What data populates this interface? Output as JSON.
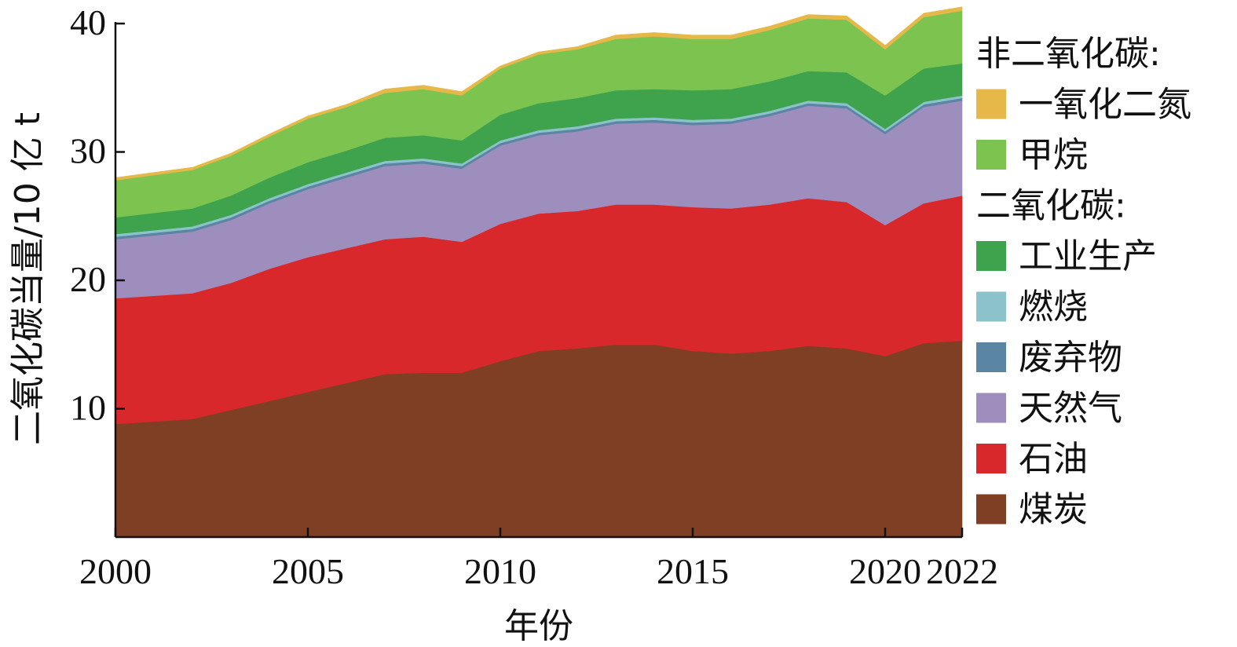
{
  "chart_data": {
    "type": "area",
    "stacked": true,
    "xlabel": "年份",
    "ylabel": "二氧化碳当量/10 亿 t",
    "xlim": [
      2000,
      2022
    ],
    "ylim": [
      0,
      40
    ],
    "xticks": [
      "2000",
      "2005",
      "2010",
      "2015",
      "2020",
      "2022"
    ],
    "yticks": [
      "10",
      "20",
      "30",
      "40"
    ],
    "x": [
      2000,
      2002,
      2003,
      2004,
      2005,
      2006,
      2007,
      2008,
      2009,
      2010,
      2011,
      2012,
      2013,
      2014,
      2015,
      2016,
      2017,
      2018,
      2019,
      2020,
      2021,
      2022
    ],
    "legend_groups": [
      {
        "heading": "非二氧化碳:",
        "items": [
          "一氧化二氮",
          "甲烷"
        ]
      },
      {
        "heading": "二氧化碳:",
        "items": [
          "工业生产",
          "燃烧",
          "废弃物",
          "天然气",
          "石油",
          "煤炭"
        ]
      }
    ],
    "series": [
      {
        "name": "煤炭",
        "color": "#7f3f25",
        "values": [
          8.8,
          9.2,
          9.9,
          10.6,
          11.3,
          12.0,
          12.7,
          12.8,
          12.8,
          13.7,
          14.5,
          14.7,
          15.0,
          15.0,
          14.5,
          14.3,
          14.5,
          14.9,
          14.7,
          14.1,
          15.1,
          15.3
        ]
      },
      {
        "name": "石油",
        "color": "#d8282c",
        "values": [
          9.8,
          9.8,
          9.9,
          10.3,
          10.5,
          10.5,
          10.5,
          10.6,
          10.2,
          10.7,
          10.7,
          10.7,
          10.9,
          10.9,
          11.2,
          11.3,
          11.4,
          11.5,
          11.4,
          10.2,
          10.9,
          11.3
        ]
      },
      {
        "name": "天然气",
        "color": "#9d8ebd",
        "values": [
          4.6,
          4.8,
          4.9,
          5.1,
          5.3,
          5.5,
          5.7,
          5.7,
          5.7,
          6.1,
          6.1,
          6.2,
          6.3,
          6.4,
          6.4,
          6.6,
          6.9,
          7.2,
          7.3,
          7.1,
          7.5,
          7.4
        ]
      },
      {
        "name": "废弃物",
        "color": "#5a86a3",
        "values": [
          0.2,
          0.2,
          0.2,
          0.2,
          0.2,
          0.2,
          0.2,
          0.2,
          0.2,
          0.2,
          0.2,
          0.2,
          0.2,
          0.2,
          0.2,
          0.2,
          0.2,
          0.2,
          0.2,
          0.2,
          0.2,
          0.2
        ]
      },
      {
        "name": "燃烧",
        "color": "#8cc2ca",
        "values": [
          0.2,
          0.2,
          0.2,
          0.2,
          0.2,
          0.2,
          0.2,
          0.2,
          0.2,
          0.2,
          0.2,
          0.2,
          0.2,
          0.2,
          0.2,
          0.2,
          0.2,
          0.2,
          0.2,
          0.2,
          0.2,
          0.2
        ]
      },
      {
        "name": "工业生产",
        "color": "#3ea34c",
        "values": [
          1.3,
          1.4,
          1.5,
          1.6,
          1.7,
          1.7,
          1.8,
          1.8,
          1.8,
          2.0,
          2.1,
          2.2,
          2.2,
          2.2,
          2.3,
          2.3,
          2.3,
          2.3,
          2.4,
          2.6,
          2.6,
          2.5
        ]
      },
      {
        "name": "甲烷",
        "color": "#7cc350",
        "values": [
          2.9,
          3.0,
          3.1,
          3.2,
          3.4,
          3.4,
          3.5,
          3.6,
          3.5,
          3.6,
          3.8,
          3.8,
          4.0,
          4.1,
          4.0,
          3.9,
          4.0,
          4.1,
          4.1,
          3.6,
          4.0,
          4.1
        ]
      },
      {
        "name": "一氧化二氮",
        "color": "#e6b84a",
        "values": [
          0.2,
          0.2,
          0.2,
          0.2,
          0.2,
          0.2,
          0.3,
          0.3,
          0.3,
          0.2,
          0.2,
          0.2,
          0.3,
          0.3,
          0.3,
          0.3,
          0.3,
          0.3,
          0.3,
          0.3,
          0.3,
          0.3
        ]
      }
    ]
  }
}
